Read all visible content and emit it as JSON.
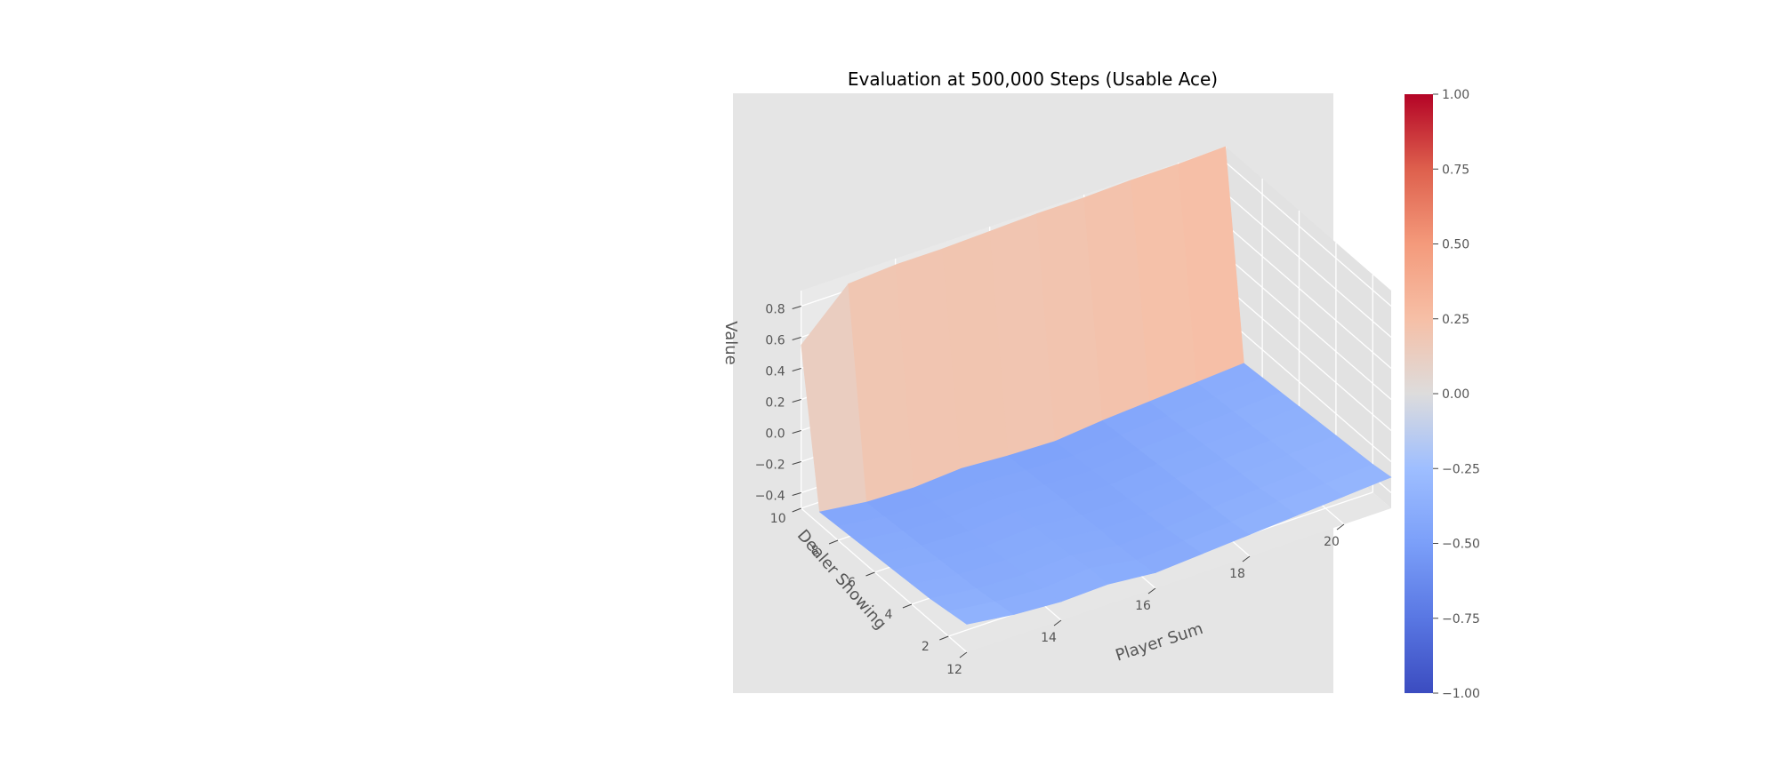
{
  "chart_data": {
    "type": "surface3d",
    "title": "Evaluation at 500,000 Steps (Usable Ace)",
    "xlabel": "Player Sum",
    "ylabel": "Dealer Showing",
    "zlabel": "Value",
    "xlim": [
      12,
      21
    ],
    "ylim": [
      1,
      10
    ],
    "zlim": [
      -0.5,
      0.9
    ],
    "x_ticks": [
      "12",
      "14",
      "16",
      "18",
      "20"
    ],
    "y_ticks": [
      "2",
      "4",
      "6",
      "8",
      "10"
    ],
    "z_ticks": [
      "−0.4",
      "−0.2",
      "0.0",
      "0.2",
      "0.4",
      "0.6",
      "0.8"
    ],
    "colormap": "coolwarm",
    "colorbar": {
      "range": [
        -1.0,
        1.0
      ],
      "ticks": [
        "−1.00",
        "−0.75",
        "−0.50",
        "−0.25",
        "0.00",
        "0.25",
        "0.50",
        "0.75",
        "1.00"
      ]
    },
    "grid": true,
    "player_sum": [
      12,
      13,
      14,
      15,
      16,
      17,
      18,
      19,
      20,
      21
    ],
    "dealer_showing": [
      1,
      2,
      3,
      4,
      5,
      6,
      7,
      8,
      9,
      10
    ],
    "values": [
      [
        -0.32,
        -0.36,
        -0.38,
        -0.37,
        -0.4,
        -0.38,
        -0.36,
        -0.34,
        -0.32,
        -0.3
      ],
      [
        -0.34,
        -0.38,
        -0.4,
        -0.37,
        -0.42,
        -0.4,
        -0.38,
        -0.35,
        -0.34,
        -0.32
      ],
      [
        -0.36,
        -0.4,
        -0.41,
        -0.39,
        -0.43,
        -0.42,
        -0.39,
        -0.37,
        -0.35,
        -0.33
      ],
      [
        -0.37,
        -0.41,
        -0.42,
        -0.4,
        -0.43,
        -0.43,
        -0.4,
        -0.38,
        -0.36,
        -0.34
      ],
      [
        -0.38,
        -0.42,
        -0.43,
        -0.41,
        -0.44,
        -0.44,
        -0.41,
        -0.39,
        -0.37,
        -0.35
      ],
      [
        -0.39,
        -0.43,
        -0.44,
        -0.42,
        -0.44,
        -0.45,
        -0.42,
        -0.4,
        -0.38,
        -0.36
      ],
      [
        -0.4,
        -0.44,
        -0.45,
        -0.43,
        -0.45,
        -0.46,
        -0.43,
        -0.41,
        -0.39,
        -0.37
      ],
      [
        -0.41,
        -0.45,
        -0.46,
        -0.44,
        -0.46,
        -0.47,
        -0.44,
        -0.42,
        -0.4,
        -0.38
      ],
      [
        -0.42,
        -0.46,
        -0.47,
        -0.45,
        -0.47,
        -0.48,
        -0.45,
        -0.43,
        -0.41,
        -0.39
      ],
      [
        0.55,
        0.84,
        0.86,
        0.86,
        0.87,
        0.88,
        0.88,
        0.89,
        0.89,
        0.9
      ]
    ]
  }
}
